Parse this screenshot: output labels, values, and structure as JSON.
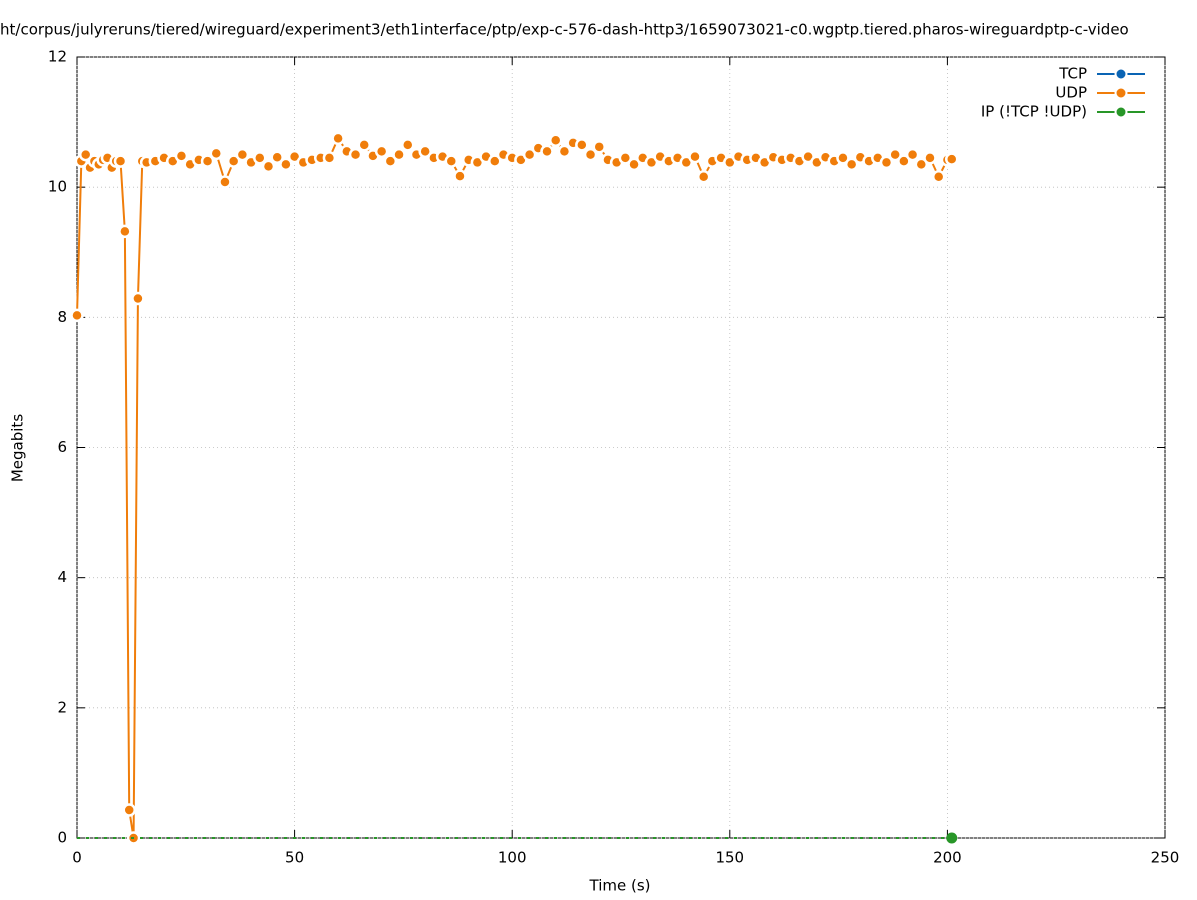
{
  "chart_data": {
    "type": "line",
    "title": "ht/corpus/julyreruns/tiered/wireguard/experiment3/eth1interface/ptp/exp-c-576-dash-http3/1659073021-c0.wgptp.tiered.pharos-wireguardptp-c-video",
    "xlabel": "Time (s)",
    "ylabel": "Megabits",
    "xlim": [
      0,
      250
    ],
    "ylim": [
      0,
      12
    ],
    "xticks": [
      0,
      50,
      100,
      150,
      200,
      250
    ],
    "yticks": [
      0,
      2,
      4,
      6,
      8,
      10,
      12
    ],
    "grid": true,
    "legend": "top-right",
    "series": [
      {
        "name": "TCP",
        "color": "#0a64b4",
        "x": [],
        "values": []
      },
      {
        "name": "UDP",
        "color": "#f07d0a",
        "x": [
          0,
          1,
          2,
          3,
          4,
          5,
          6,
          7,
          8,
          9,
          10,
          11,
          12,
          13,
          14,
          15,
          16,
          18,
          20,
          22,
          24,
          26,
          28,
          30,
          32,
          34,
          36,
          38,
          40,
          42,
          44,
          46,
          48,
          50,
          52,
          54,
          56,
          58,
          60,
          62,
          64,
          66,
          68,
          70,
          72,
          74,
          76,
          78,
          80,
          82,
          84,
          86,
          88,
          90,
          92,
          94,
          96,
          98,
          100,
          102,
          104,
          106,
          108,
          110,
          112,
          114,
          116,
          118,
          120,
          122,
          124,
          126,
          128,
          130,
          132,
          134,
          136,
          138,
          140,
          142,
          144,
          146,
          148,
          150,
          152,
          154,
          156,
          158,
          160,
          162,
          164,
          166,
          168,
          170,
          172,
          174,
          176,
          178,
          180,
          182,
          184,
          186,
          188,
          190,
          192,
          194,
          196,
          198,
          200,
          201
        ],
        "values": [
          8.03,
          10.4,
          10.5,
          10.3,
          10.4,
          10.35,
          10.42,
          10.45,
          10.3,
          10.4,
          10.4,
          9.32,
          0.43,
          0.0,
          8.29,
          10.4,
          10.38,
          10.4,
          10.45,
          10.4,
          10.48,
          10.35,
          10.42,
          10.4,
          10.52,
          10.08,
          10.4,
          10.5,
          10.38,
          10.45,
          10.32,
          10.46,
          10.35,
          10.47,
          10.38,
          10.42,
          10.45,
          10.45,
          10.75,
          10.55,
          10.5,
          10.65,
          10.48,
          10.55,
          10.4,
          10.5,
          10.65,
          10.5,
          10.55,
          10.45,
          10.47,
          10.4,
          10.17,
          10.42,
          10.38,
          10.47,
          10.4,
          10.5,
          10.45,
          10.42,
          10.5,
          10.6,
          10.55,
          10.72,
          10.55,
          10.68,
          10.65,
          10.5,
          10.62,
          10.42,
          10.38,
          10.45,
          10.35,
          10.45,
          10.38,
          10.47,
          10.4,
          10.45,
          10.38,
          10.47,
          10.16,
          10.4,
          10.45,
          10.38,
          10.47,
          10.42,
          10.45,
          10.38,
          10.46,
          10.42,
          10.45,
          10.4,
          10.47,
          10.38,
          10.46,
          10.4,
          10.45,
          10.35,
          10.46,
          10.4,
          10.45,
          10.38,
          10.5,
          10.4,
          10.5,
          10.35,
          10.45,
          10.16,
          10.42,
          10.43
        ]
      },
      {
        "name": "IP (!TCP  !UDP)",
        "color": "#289628",
        "x": [
          0,
          10,
          20,
          30,
          40,
          50,
          60,
          70,
          80,
          90,
          100,
          110,
          120,
          130,
          140,
          150,
          160,
          170,
          180,
          190,
          200,
          201
        ],
        "values": [
          0,
          0,
          0,
          0,
          0,
          0,
          0,
          0,
          0,
          0,
          0,
          0,
          0,
          0,
          0,
          0,
          0,
          0,
          0,
          0,
          0,
          0
        ]
      }
    ]
  }
}
